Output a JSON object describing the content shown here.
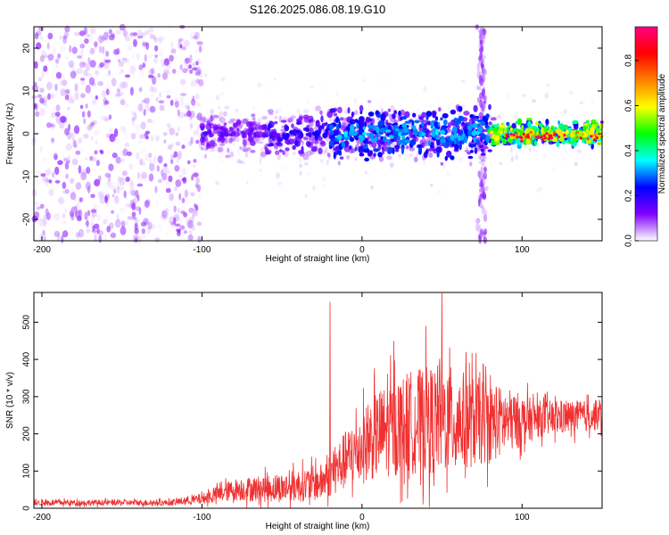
{
  "title": "S126.2025.086.08.19.G10",
  "chart_data": [
    {
      "type": "heatmap",
      "name": "spectrogram",
      "xlabel": "Height of straight line (km)",
      "ylabel": "Frequency (Hz)",
      "xlim": [
        -205,
        150
      ],
      "ylim": [
        -25,
        25
      ],
      "xticks": [
        -200,
        -100,
        0,
        100
      ],
      "yticks": [
        -20,
        -10,
        0,
        10,
        20
      ],
      "colorbar": {
        "label": "Normalized spectral amplitude",
        "range": [
          0,
          0.95
        ],
        "ticks": [
          0.0,
          0.2,
          0.4,
          0.6,
          0.8
        ],
        "tick_labels": [
          "0.0",
          "0.2",
          "0.4",
          "0.6",
          "0.8"
        ],
        "colormap": [
          "#ffffff",
          "#8000ff",
          "#0000ff",
          "#00ffff",
          "#00ff00",
          "#ffff00",
          "#ff8000",
          "#ff0000",
          "#ff0080"
        ]
      },
      "features": {
        "broadband_noise_x": [
          -205,
          -100
        ],
        "central_band_x": [
          -100,
          150
        ],
        "central_band_halfwidth_hz": 4,
        "vertical_streak_x": 75,
        "peak_band_x": [
          80,
          150
        ]
      }
    },
    {
      "type": "line",
      "name": "snr",
      "xlabel": "Height of straight line (km)",
      "ylabel": "SNR (10 * v/v)",
      "xlim": [
        -205,
        150
      ],
      "ylim": [
        0,
        580
      ],
      "xticks": [
        -200,
        -100,
        0,
        100
      ],
      "yticks": [
        0,
        100,
        200,
        300,
        400,
        500
      ],
      "color": "#f03030",
      "envelope": [
        {
          "x": -205,
          "mean": 15,
          "spread": 8
        },
        {
          "x": -120,
          "mean": 15,
          "spread": 8
        },
        {
          "x": -100,
          "mean": 25,
          "spread": 15
        },
        {
          "x": -80,
          "mean": 50,
          "spread": 30
        },
        {
          "x": -50,
          "mean": 55,
          "spread": 40
        },
        {
          "x": -25,
          "mean": 70,
          "spread": 50
        },
        {
          "x": -10,
          "mean": 130,
          "spread": 80
        },
        {
          "x": 10,
          "mean": 200,
          "spread": 120
        },
        {
          "x": 30,
          "mean": 230,
          "spread": 140
        },
        {
          "x": 50,
          "mean": 240,
          "spread": 150
        },
        {
          "x": 80,
          "mean": 230,
          "spread": 110
        },
        {
          "x": 110,
          "mean": 240,
          "spread": 50
        },
        {
          "x": 150,
          "mean": 250,
          "spread": 40
        }
      ],
      "spikes": [
        {
          "x": -20,
          "y": 555
        },
        {
          "x": 20,
          "y": 450
        },
        {
          "x": 40,
          "y": 490
        },
        {
          "x": 50,
          "y": 578
        },
        {
          "x": 65,
          "y": 420
        }
      ]
    }
  ]
}
